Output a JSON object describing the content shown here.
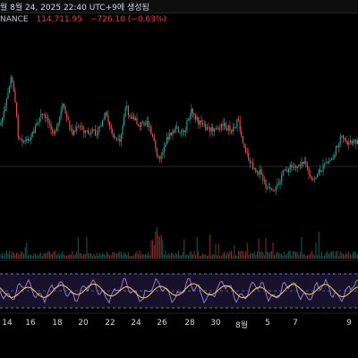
{
  "header": {
    "timestamp_text": "월 8월 24, 2025 22:40 UTC+9에 생성됨"
  },
  "ticker": {
    "exchange_label": "NANCE",
    "price": "114,711.95",
    "change": "−726.10 (−0.63%)"
  },
  "colors": {
    "background": "#000000",
    "up": "#26a69a",
    "down": "#ef5350",
    "rsi_line": "#8e7cc3",
    "rsi_ma": "#f5d36b",
    "rsi_band_fill": "#3a2a6b"
  },
  "xaxis": {
    "labels": [
      "14",
      "16",
      "18",
      "20",
      "22",
      "24",
      "26",
      "28",
      "30",
      "8월",
      "5",
      "7",
      "9"
    ]
  },
  "chart_data": {
    "type": "candlestick_with_volume_and_rsi",
    "price_path_description": "",
    "rsi_levels": [
      70,
      50,
      30
    ]
  }
}
